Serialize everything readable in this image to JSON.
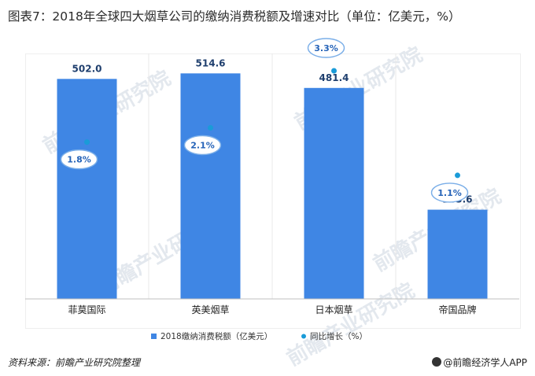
{
  "title": "图表7：2018年全球四大烟草公司的缴纳消费税额及增速对比（单位：亿美元，%）",
  "footer": {
    "source": "资料来源：前瞻产业研究院整理",
    "brand": "@前瞻经济学人APP"
  },
  "watermark": "前瞻产业研究院",
  "colors": {
    "bar": "#3f86e4",
    "dot": "#1a9bd8",
    "bubble_border": "#7aaee8",
    "bubble_text": "#2563b8",
    "grid": "#e8e8e8"
  },
  "chart_data": {
    "type": "bar",
    "categories": [
      "菲莫国际",
      "英美烟草",
      "日本烟草",
      "帝国品牌"
    ],
    "series": [
      {
        "name": "2018缴纳消费税额（亿美元）",
        "type": "bar",
        "values": [
          502.0,
          514.6,
          481.4,
          203.6
        ],
        "labels": [
          "502.0",
          "514.6",
          "481.4",
          "203.6"
        ]
      },
      {
        "name": "同比增长（%）",
        "type": "scatter",
        "values": [
          1.8,
          2.1,
          3.3,
          1.1
        ],
        "labels": [
          "1.8%",
          "2.1%",
          "3.3%",
          "1.1%"
        ]
      }
    ],
    "ylim": [
      0,
      560
    ],
    "y2lim": [
      -1.5,
      3.3
    ],
    "legend_position": "bottom",
    "grid": false
  }
}
